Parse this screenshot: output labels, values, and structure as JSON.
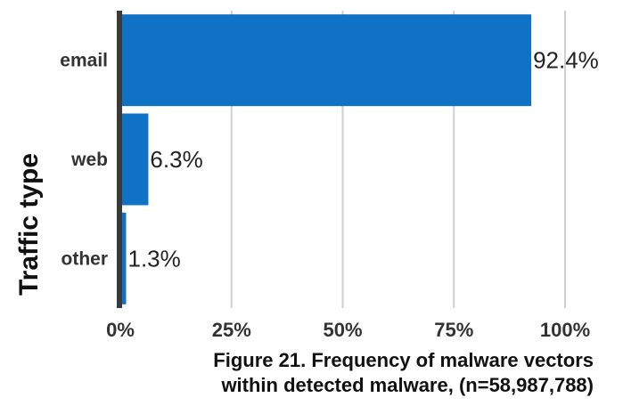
{
  "chart_data": {
    "type": "bar",
    "orientation": "horizontal",
    "categories": [
      "email",
      "web",
      "other"
    ],
    "values": [
      92.4,
      6.3,
      1.3
    ],
    "value_labels": [
      "92.4%",
      "6.3%",
      "1.3%"
    ],
    "ylabel": "Traffic type",
    "xlabel": "",
    "xlim": [
      0,
      100
    ],
    "x_ticks": [
      0,
      25,
      50,
      75,
      100
    ],
    "x_tick_labels": [
      "0%",
      "25%",
      "50%",
      "75%",
      "100%"
    ],
    "grid": "vertical",
    "legend": "none",
    "caption": "Figure 21.  Frequency of malware vectors\nwithin detected malware, (n=58,987,788)",
    "colors": {
      "bar": "#0f72c4",
      "axis_line": "#3a3a3a",
      "grid": "#cfcfcf",
      "text": "#333333",
      "caption": "#111111"
    }
  }
}
